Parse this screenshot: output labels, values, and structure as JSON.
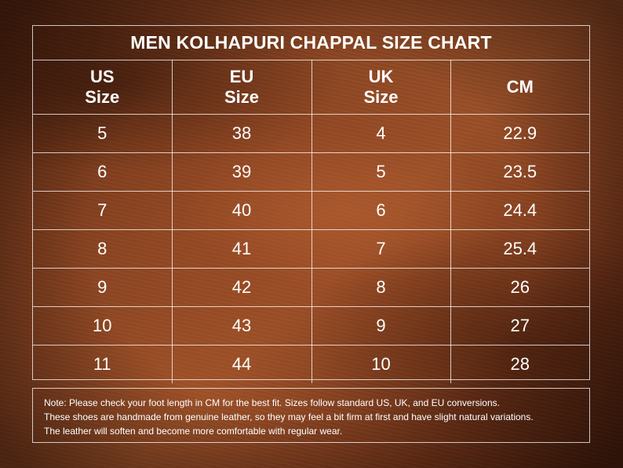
{
  "chart_data": {
    "type": "table",
    "title": "MEN KOLHAPURI CHAPPAL SIZE CHART",
    "columns": [
      {
        "line1": "US",
        "line2": "Size"
      },
      {
        "line1": "EU",
        "line2": "Size"
      },
      {
        "line1": "UK",
        "line2": "Size"
      },
      {
        "line1": "CM",
        "line2": ""
      }
    ],
    "rows": [
      [
        "5",
        "38",
        "4",
        "22.9"
      ],
      [
        "6",
        "39",
        "5",
        "23.5"
      ],
      [
        "7",
        "40",
        "6",
        "24.4"
      ],
      [
        "8",
        "41",
        "7",
        "25.4"
      ],
      [
        "9",
        "42",
        "8",
        "26"
      ],
      [
        "10",
        "43",
        "9",
        "27"
      ],
      [
        "11",
        "44",
        "10",
        "28"
      ]
    ]
  },
  "note": {
    "lines": [
      "Note: Please check your foot length in CM for the best fit. Sizes follow standard US, UK, and EU conversions.",
      "These shoes are handmade from genuine leather, so they may feel a bit firm at first and have slight natural variations.",
      "The leather will soften and become more comfortable with regular wear."
    ]
  },
  "colors": {
    "text": "#ffffff",
    "grid_lines": "#ffffff",
    "leather_base": "#7a3a1c"
  }
}
